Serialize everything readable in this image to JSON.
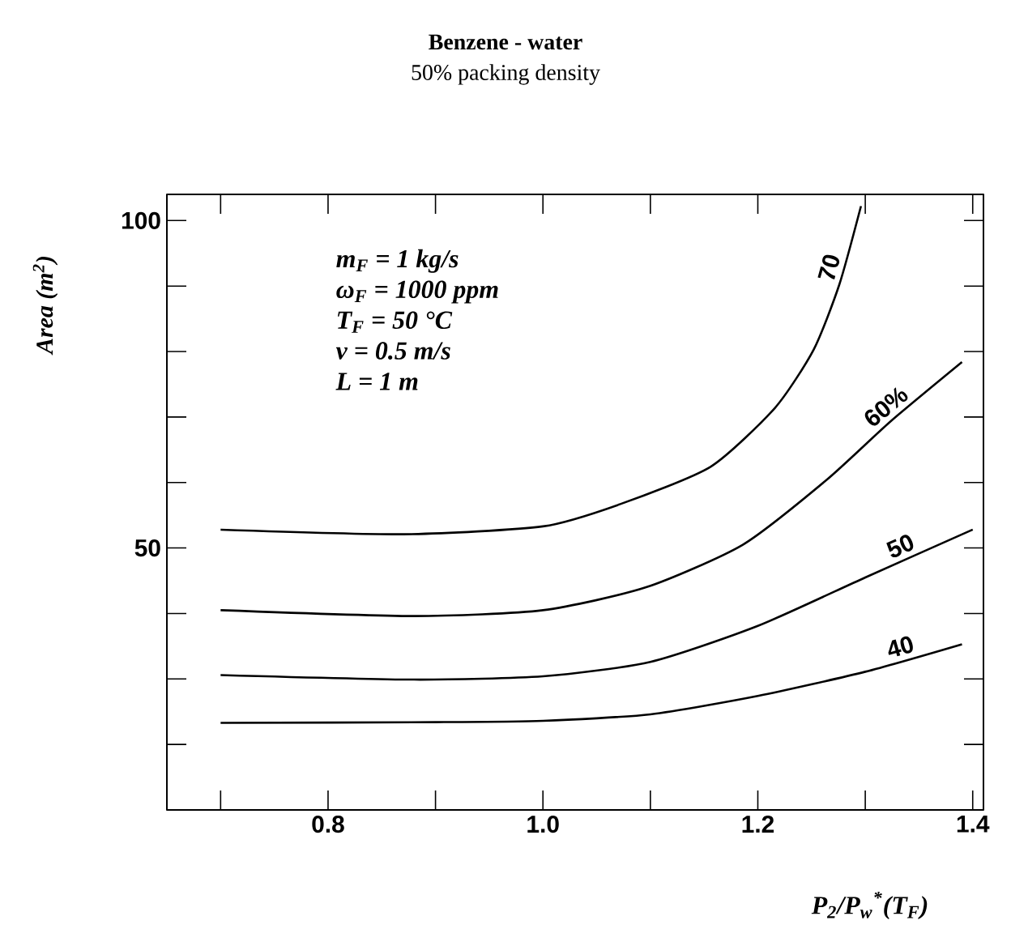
{
  "chart_data": {
    "type": "line",
    "title": "Benzene - water",
    "subtitle": "50% packing density",
    "xlabel": "P$_{2}$/P$_{w}$$^{*}$(T$_{F}$)",
    "ylabel": "Area (m$^{2}$)",
    "annotations": [
      "m$_{F}$ = 1 kg/s",
      "ω$_{F}$ = 1000 ppm",
      "T$_{F}$ = 50 °C",
      "v  = 0.5 m/s",
      "L = 1 m"
    ],
    "xlim": [
      0.65,
      1.41
    ],
    "ylim": [
      10,
      104
    ],
    "xticks": [
      {
        "value": 0.7,
        "label": null
      },
      0.8,
      {
        "value": 0.9,
        "label": null
      },
      {
        "value": 1.0,
        "label": "1.0"
      },
      {
        "value": 1.1,
        "label": null
      },
      1.2,
      {
        "value": 1.3,
        "label": null
      },
      1.4
    ],
    "yticks": [
      {
        "value": 20,
        "label": null
      },
      {
        "value": 30,
        "label": null
      },
      {
        "value": 40,
        "label": null
      },
      50,
      {
        "value": 60,
        "label": null
      },
      {
        "value": 70,
        "label": null
      },
      {
        "value": 80,
        "label": null
      },
      {
        "value": 90,
        "label": null
      },
      100
    ],
    "marker": "none",
    "line_style": "solid",
    "grid": false,
    "legend": "right",
    "series": [
      {
        "name": "70",
        "color": "#000000",
        "x": [
          0.7,
          0.87,
          1.0,
          1.072,
          1.156,
          1.216,
          1.252,
          1.276,
          1.296
        ],
        "values": [
          52.8,
          52.1,
          53.3,
          56.7,
          62.4,
          71.4,
          80.3,
          90.3,
          102.2
        ]
      },
      {
        "name": "60%",
        "color": "#000000",
        "x": [
          0.7,
          0.88,
          1.0,
          1.096,
          1.186,
          1.264,
          1.324,
          1.39
        ],
        "values": [
          40.5,
          39.6,
          40.5,
          44.0,
          50.5,
          60.4,
          69.4,
          78.4
        ]
      },
      {
        "name": "50",
        "color": "#000000",
        "x": [
          0.7,
          0.88,
          1.0,
          1.1,
          1.2,
          1.3,
          1.4
        ],
        "values": [
          30.6,
          29.9,
          30.4,
          32.6,
          38.1,
          45.5,
          52.8
        ]
      },
      {
        "name": "40",
        "color": "#000000",
        "x": [
          0.7,
          0.9,
          1.0,
          1.1,
          1.2,
          1.3,
          1.39
        ],
        "values": [
          23.3,
          23.4,
          23.6,
          24.6,
          27.4,
          31.1,
          35.3
        ]
      }
    ]
  }
}
